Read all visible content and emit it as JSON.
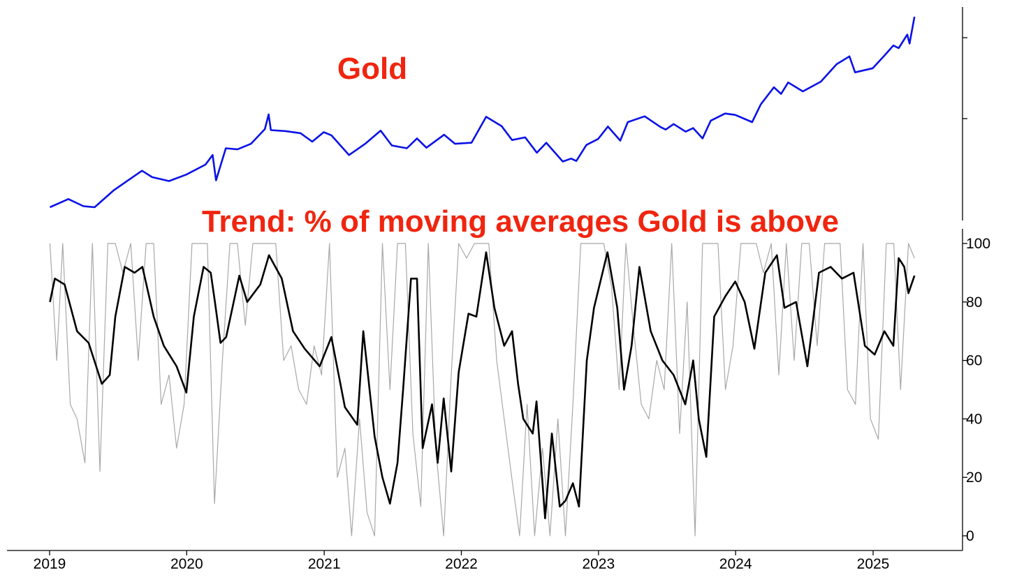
{
  "colors": {
    "price_line": "#0a12e6",
    "raw_trend_line": "#a8a8a8",
    "smoothed_trend_line": "#000000",
    "title_red": "#f0250f",
    "axis": "#000000"
  },
  "chart_data": [
    {
      "type": "line",
      "title": "Gold",
      "xlabel": "",
      "ylabel": "",
      "y_tick_labels_shown": false,
      "x_range": [
        "2019-01-01",
        "2025-04-20"
      ],
      "ylim": [
        1200,
        3400
      ],
      "y_scale": "log",
      "grid": false,
      "series": [
        {
          "color": "#0a12e6",
          "x": [
            "2019-01-02",
            "2019-02-20",
            "2019-04-01",
            "2019-05-01",
            "2019-06-20",
            "2019-08-10",
            "2019-09-04",
            "2019-10-01",
            "2019-11-15",
            "2019-12-31",
            "2020-02-20",
            "2020-03-10",
            "2020-03-19",
            "2020-04-14",
            "2020-05-15",
            "2020-06-20",
            "2020-07-27",
            "2020-08-06",
            "2020-08-12",
            "2020-09-20",
            "2020-10-30",
            "2020-11-30",
            "2020-12-31",
            "2021-01-20",
            "2021-03-08",
            "2021-04-20",
            "2021-05-31",
            "2021-06-30",
            "2021-08-09",
            "2021-09-05",
            "2021-09-30",
            "2021-11-16",
            "2021-12-15",
            "2022-01-28",
            "2022-03-08",
            "2022-04-18",
            "2022-05-16",
            "2022-06-20",
            "2022-07-21",
            "2022-08-15",
            "2022-09-28",
            "2022-10-20",
            "2022-11-03",
            "2022-11-30",
            "2022-12-31",
            "2023-01-26",
            "2023-02-28",
            "2023-03-20",
            "2023-05-04",
            "2023-06-15",
            "2023-06-29",
            "2023-07-20",
            "2023-08-21",
            "2023-09-10",
            "2023-10-05",
            "2023-10-27",
            "2023-12-04",
            "2023-12-31",
            "2024-02-14",
            "2024-03-08",
            "2024-04-12",
            "2024-05-01",
            "2024-05-20",
            "2024-06-28",
            "2024-08-15",
            "2024-09-26",
            "2024-10-30",
            "2024-11-14",
            "2024-12-31",
            "2025-01-31",
            "2025-02-24",
            "2025-03-10",
            "2025-04-02",
            "2025-04-08",
            "2025-04-21"
          ],
          "y": [
            1285,
            1340,
            1292,
            1285,
            1400,
            1500,
            1550,
            1500,
            1470,
            1520,
            1600,
            1680,
            1475,
            1740,
            1730,
            1780,
            1920,
            2070,
            1910,
            1900,
            1880,
            1800,
            1890,
            1860,
            1680,
            1780,
            1905,
            1765,
            1740,
            1830,
            1745,
            1865,
            1780,
            1790,
            2045,
            1950,
            1815,
            1840,
            1700,
            1790,
            1625,
            1650,
            1630,
            1770,
            1825,
            1945,
            1810,
            1990,
            2050,
            1940,
            1915,
            1970,
            1895,
            1930,
            1830,
            2005,
            2080,
            2065,
            1990,
            2180,
            2380,
            2300,
            2440,
            2330,
            2450,
            2680,
            2790,
            2570,
            2625,
            2800,
            2950,
            2910,
            3120,
            2980,
            3420
          ]
        }
      ]
    },
    {
      "type": "line",
      "title": "Trend: % of moving averages Gold is above",
      "xlabel": "",
      "ylabel": "",
      "ylim": [
        0,
        100
      ],
      "y_ticks": [
        0,
        20,
        40,
        60,
        80,
        100
      ],
      "x_ticks": [
        "2019",
        "2020",
        "2021",
        "2022",
        "2023",
        "2024",
        "2025"
      ],
      "grid": false,
      "series": [
        {
          "color": "#000000",
          "x": [
            "2019-01-02",
            "2019-01-15",
            "2019-02-10",
            "2019-03-15",
            "2019-04-15",
            "2019-05-20",
            "2019-06-10",
            "2019-06-25",
            "2019-07-20",
            "2019-08-15",
            "2019-09-05",
            "2019-10-05",
            "2019-11-01",
            "2019-12-05",
            "2019-12-31",
            "2020-01-20",
            "2020-02-15",
            "2020-03-05",
            "2020-03-16",
            "2020-03-31",
            "2020-04-15",
            "2020-05-20",
            "2020-06-10",
            "2020-07-15",
            "2020-08-07",
            "2020-09-10",
            "2020-10-10",
            "2020-11-10",
            "2020-12-20",
            "2021-01-20",
            "2021-02-25",
            "2021-03-30",
            "2021-04-15",
            "2021-05-15",
            "2021-06-05",
            "2021-06-25",
            "2021-07-15",
            "2021-07-30",
            "2021-08-20",
            "2021-09-05",
            "2021-09-20",
            "2021-10-15",
            "2021-10-30",
            "2021-11-15",
            "2021-12-05",
            "2021-12-25",
            "2022-01-20",
            "2022-02-10",
            "2022-03-08",
            "2022-03-30",
            "2022-04-25",
            "2022-05-16",
            "2022-06-01",
            "2022-06-15",
            "2022-07-10",
            "2022-07-20",
            "2022-08-12",
            "2022-08-30",
            "2022-09-20",
            "2022-10-05",
            "2022-10-25",
            "2022-11-10",
            "2022-12-01",
            "2022-12-20",
            "2023-01-25",
            "2023-02-20",
            "2023-03-10",
            "2023-03-30",
            "2023-04-20",
            "2023-05-20",
            "2023-06-20",
            "2023-07-20",
            "2023-08-20",
            "2023-09-10",
            "2023-09-25",
            "2023-10-15",
            "2023-11-05",
            "2023-12-05",
            "2023-12-31",
            "2024-01-25",
            "2024-02-20",
            "2024-03-20",
            "2024-04-20",
            "2024-05-10",
            "2024-06-10",
            "2024-07-10",
            "2024-08-10",
            "2024-09-10",
            "2024-10-10",
            "2024-11-10",
            "2024-12-10",
            "2025-01-05",
            "2025-01-31",
            "2025-02-24",
            "2025-03-10",
            "2025-03-25",
            "2025-04-05",
            "2025-04-21"
          ],
          "y": [
            80,
            88,
            86,
            70,
            66,
            52,
            55,
            75,
            92,
            90,
            92,
            75,
            65,
            58,
            49,
            75,
            92,
            90,
            80,
            66,
            68,
            89,
            80,
            86,
            96,
            88,
            70,
            64,
            58,
            68,
            44,
            38,
            70,
            34,
            20,
            11,
            25,
            50,
            88,
            88,
            30,
            45,
            25,
            47,
            22,
            56,
            76,
            75,
            97,
            78,
            65,
            70,
            52,
            40,
            35,
            46,
            6,
            35,
            10,
            12,
            18,
            10,
            60,
            78,
            97,
            78,
            50,
            65,
            92,
            70,
            60,
            55,
            45,
            60,
            40,
            27,
            75,
            82,
            87,
            80,
            64,
            90,
            96,
            78,
            80,
            58,
            90,
            92,
            88,
            90,
            65,
            62,
            70,
            65,
            95,
            92,
            83,
            89
          ]
        }
      ],
      "raw_series_note": "",
      "raw_series": {
        "color": "#a8a8a8",
        "x": [
          "2019-01-02",
          "2019-01-20",
          "2019-02-05",
          "2019-02-25",
          "2019-03-15",
          "2019-04-05",
          "2019-04-25",
          "2019-05-15",
          "2019-06-05",
          "2019-06-25",
          "2019-07-15",
          "2019-08-05",
          "2019-08-25",
          "2019-09-15",
          "2019-10-05",
          "2019-10-25",
          "2019-11-15",
          "2019-12-05",
          "2019-12-25",
          "2020-01-15",
          "2020-02-05",
          "2020-02-25",
          "2020-03-15",
          "2020-04-05",
          "2020-04-25",
          "2020-05-15",
          "2020-06-05",
          "2020-06-25",
          "2020-07-15",
          "2020-08-05",
          "2020-08-25",
          "2020-09-15",
          "2020-10-05",
          "2020-10-25",
          "2020-11-15",
          "2020-12-05",
          "2020-12-25",
          "2021-01-15",
          "2021-02-05",
          "2021-02-25",
          "2021-03-15",
          "2021-04-05",
          "2021-04-25",
          "2021-05-15",
          "2021-06-05",
          "2021-06-25",
          "2021-07-15",
          "2021-08-05",
          "2021-08-25",
          "2021-09-15",
          "2021-10-05",
          "2021-10-25",
          "2021-11-15",
          "2021-12-05",
          "2021-12-25",
          "2022-01-15",
          "2022-02-05",
          "2022-02-25",
          "2022-03-15",
          "2022-04-05",
          "2022-04-25",
          "2022-05-15",
          "2022-06-05",
          "2022-06-25",
          "2022-07-15",
          "2022-08-05",
          "2022-08-25",
          "2022-09-15",
          "2022-10-05",
          "2022-10-25",
          "2022-11-15",
          "2022-12-05",
          "2022-12-25",
          "2023-01-15",
          "2023-02-05",
          "2023-02-25",
          "2023-03-15",
          "2023-04-05",
          "2023-04-25",
          "2023-05-15",
          "2023-06-05",
          "2023-06-25",
          "2023-07-15",
          "2023-08-05",
          "2023-08-25",
          "2023-09-15",
          "2023-10-05",
          "2023-10-25",
          "2023-11-15",
          "2023-12-05",
          "2023-12-25",
          "2024-01-15",
          "2024-02-05",
          "2024-02-25",
          "2024-03-15",
          "2024-04-05",
          "2024-04-25",
          "2024-05-15",
          "2024-06-05",
          "2024-06-25",
          "2024-07-15",
          "2024-08-05",
          "2024-08-25",
          "2024-09-15",
          "2024-10-05",
          "2024-10-25",
          "2024-11-15",
          "2024-12-05",
          "2024-12-25",
          "2025-01-15",
          "2025-02-05",
          "2025-02-25",
          "2025-03-15",
          "2025-04-05",
          "2025-04-21"
        ],
        "y": [
          100,
          60,
          100,
          45,
          40,
          25,
          100,
          22,
          100,
          100,
          90,
          100,
          60,
          100,
          100,
          45,
          55,
          30,
          45,
          100,
          100,
          100,
          11,
          60,
          100,
          100,
          72,
          100,
          100,
          100,
          100,
          60,
          65,
          50,
          45,
          65,
          55,
          100,
          20,
          30,
          0,
          40,
          8,
          0,
          100,
          50,
          100,
          100,
          35,
          10,
          100,
          30,
          0,
          55,
          100,
          95,
          100,
          100,
          100,
          60,
          40,
          20,
          0,
          45,
          0,
          30,
          0,
          40,
          0,
          45,
          100,
          100,
          100,
          100,
          85,
          50,
          100,
          70,
          45,
          40,
          60,
          50,
          100,
          35,
          80,
          0,
          100,
          100,
          100,
          50,
          65,
          100,
          100,
          100,
          90,
          100,
          55,
          100,
          60,
          100,
          100,
          65,
          100,
          100,
          100,
          50,
          45,
          100,
          40,
          33,
          100,
          100,
          50,
          100,
          95
        ]
      }
    }
  ]
}
